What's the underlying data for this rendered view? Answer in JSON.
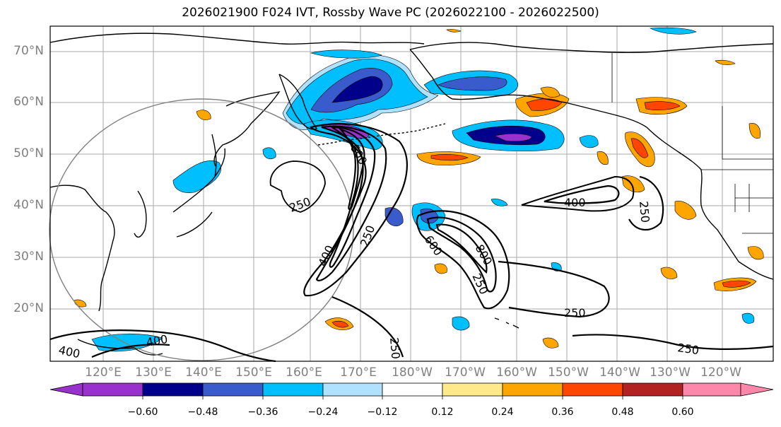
{
  "title": "2026021900 F024 IVT, Rossby Wave PC (2026022100 - 2026022500)",
  "lat_labels": [
    "70°N",
    "60°N",
    "50°N",
    "40°N",
    "30°N",
    "20°N"
  ],
  "lon_labels": [
    "120°E",
    "130°E",
    "140°E",
    "150°E",
    "160°E",
    "170°E",
    "180°W",
    "170°W",
    "160°W",
    "150°W",
    "140°W",
    "130°W",
    "120°W"
  ],
  "colorbar": {
    "ticks": [
      "−0.60",
      "−0.48",
      "−0.36",
      "−0.24",
      "−0.12",
      "0.12",
      "0.24",
      "0.36",
      "0.48",
      "0.60"
    ],
    "colors": [
      "#9932cc",
      "#00008b",
      "#3a5bcc",
      "#00bfff",
      "#b0e2ff",
      "#ffffff",
      "#ffe98a",
      "#ffa500",
      "#ff4500",
      "#b22222",
      "#ff88aa"
    ]
  },
  "contour_labels": [
    "250",
    "600",
    "250",
    "400",
    "250",
    "600",
    "800",
    "250",
    "400",
    "250",
    "250",
    "400",
    "250"
  ]
}
